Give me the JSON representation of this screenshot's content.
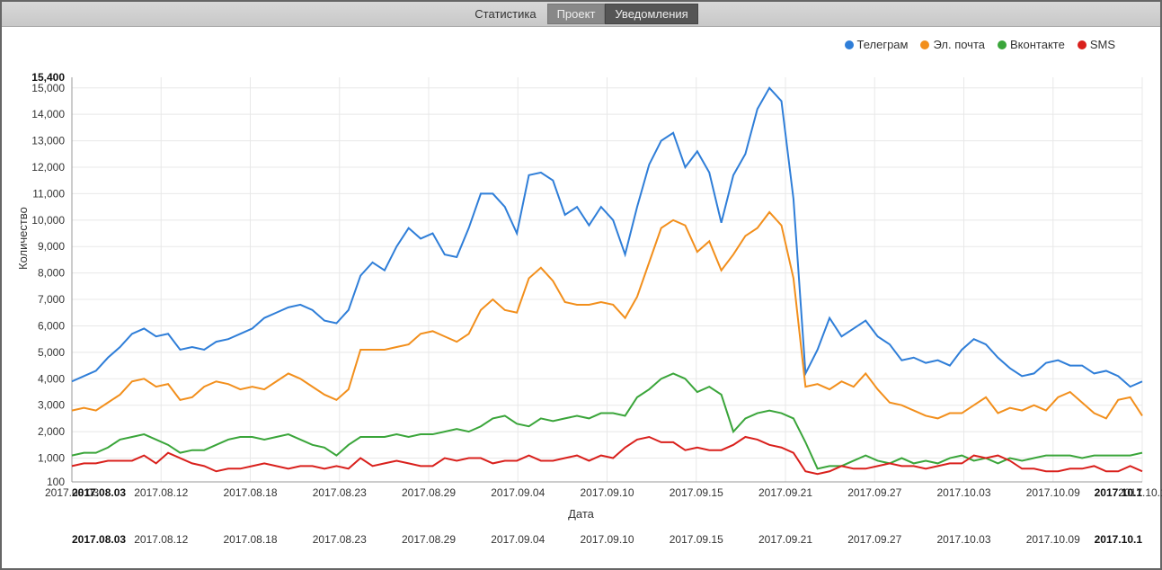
{
  "topbar": {
    "label": "Статистика",
    "tab_project": "Проект",
    "tab_notifications": "Уведомления"
  },
  "chart": {
    "type": "line",
    "y_axis_label": "Количество",
    "x_axis_label": "Дата",
    "background_color": "#ffffff",
    "grid_color": "#e8e8e8",
    "axis_color": "#999999",
    "x_ticks": [
      "2017.08.03",
      "2017.08.12",
      "2017.08.18",
      "2017.08.23",
      "2017.08.29",
      "2017.09.04",
      "2017.09.10",
      "2017.09.15",
      "2017.09.21",
      "2017.09.27",
      "2017.10.03",
      "2017.10.09",
      "2017.10.1"
    ],
    "x_bounds": [
      "2017.08.03",
      "2017.10.1"
    ],
    "y_ticks": [
      100,
      1000,
      2000,
      3000,
      4000,
      5000,
      6000,
      7000,
      8000,
      9000,
      10000,
      11000,
      12000,
      13000,
      14000,
      15000
    ],
    "y_min": 100,
    "y_max": 15400,
    "y_max_label": "15,400",
    "n_points": 72,
    "legend": [
      {
        "label": "Телеграм",
        "color": "#2f7ed8"
      },
      {
        "label": "Эл. почта",
        "color": "#f28f1c"
      },
      {
        "label": "Вконтакте",
        "color": "#3aa53a"
      },
      {
        "label": "SMS",
        "color": "#d9201c"
      }
    ],
    "series": {
      "telegram": [
        3900,
        4100,
        4300,
        4800,
        5200,
        5700,
        5900,
        5600,
        5700,
        5100,
        5200,
        5100,
        5400,
        5500,
        5700,
        5900,
        6300,
        6500,
        6700,
        6800,
        6600,
        6200,
        6100,
        6600,
        7900,
        8400,
        8100,
        9000,
        9700,
        9300,
        9500,
        8700,
        8600,
        9700,
        11000,
        11000,
        10500,
        9500,
        11700,
        11800,
        11500,
        10200,
        10500,
        9800,
        10500,
        10000,
        8700,
        10500,
        12100,
        13000,
        13300,
        12000,
        12600,
        11800,
        9900,
        11700,
        12500,
        14200,
        15000,
        14500,
        10800,
        4200,
        5100,
        6300,
        5600,
        5900,
        6200,
        5600,
        5300,
        4700,
        4800,
        4600
      ],
      "email": [
        2800,
        2900,
        2800,
        3100,
        3400,
        3900,
        4000,
        3700,
        3800,
        3200,
        3300,
        3700,
        3900,
        3800,
        3600,
        3700,
        3600,
        3900,
        4200,
        4000,
        3700,
        3400,
        3200,
        3600,
        5100,
        5100,
        5100,
        5200,
        5300,
        5700,
        5800,
        5600,
        5400,
        5700,
        6600,
        7000,
        6600,
        6500,
        7800,
        8200,
        7700,
        6900,
        6800,
        6800,
        6900,
        6800,
        6300,
        7100,
        8400,
        9700,
        10000,
        9800,
        8800,
        9200,
        8100,
        8700,
        9400,
        9700,
        10300,
        9800,
        7800,
        3700,
        3800,
        3600,
        3900,
        3700,
        4200,
        3600,
        3100,
        3000,
        2800,
        2600
      ],
      "vk": [
        1100,
        1200,
        1200,
        1400,
        1700,
        1800,
        1900,
        1700,
        1500,
        1200,
        1300,
        1300,
        1500,
        1700,
        1800,
        1800,
        1700,
        1800,
        1900,
        1700,
        1500,
        1400,
        1100,
        1500,
        1800,
        1800,
        1800,
        1900,
        1800,
        1900,
        1900,
        2000,
        2100,
        2000,
        2200,
        2500,
        2600,
        2300,
        2200,
        2500,
        2400,
        2500,
        2600,
        2500,
        2700,
        2700,
        2600,
        3300,
        3600,
        4000,
        4200,
        4000,
        3500,
        3700,
        3400,
        2000,
        2500,
        2700,
        2800,
        2700,
        2500,
        1600,
        600,
        700,
        700,
        900,
        1100,
        900,
        800,
        1000,
        800,
        900
      ],
      "sms": [
        700,
        800,
        800,
        900,
        900,
        900,
        1100,
        800,
        1200,
        1000,
        800,
        700,
        500,
        600,
        600,
        700,
        800,
        700,
        600,
        700,
        700,
        600,
        700,
        600,
        1000,
        700,
        800,
        900,
        800,
        700,
        700,
        1000,
        900,
        1000,
        1000,
        800,
        900,
        900,
        1100,
        900,
        900,
        1000,
        1100,
        900,
        1100,
        1000,
        1400,
        1700,
        1800,
        1600,
        1600,
        1300,
        1400,
        1300,
        1300,
        1500,
        1800,
        1700,
        1500,
        1400,
        1200,
        500,
        400,
        500,
        700,
        600,
        600,
        700,
        800,
        700,
        700,
        600
      ]
    },
    "extended_series": {
      "telegram": [
        4700,
        4500,
        5100,
        5500,
        5300,
        4800,
        4400,
        4100,
        4200,
        4600,
        4700,
        4500,
        4500,
        4200,
        4300,
        4100,
        3700,
        3900
      ],
      "email": [
        2500,
        2700,
        2700,
        3000,
        3300,
        2700,
        2900,
        2800,
        3000,
        2800,
        3300,
        3500,
        3100,
        2700,
        2500,
        3200,
        3300,
        2600
      ],
      "vk": [
        800,
        1000,
        1100,
        900,
        1000,
        800,
        1000,
        900,
        1000,
        1100,
        1100,
        1100,
        1000,
        1100,
        1100,
        1100,
        1100,
        1200
      ],
      "sms": [
        700,
        800,
        800,
        1100,
        1000,
        1100,
        900,
        600,
        600,
        500,
        500,
        600,
        600,
        700,
        500,
        500,
        700,
        500
      ]
    }
  }
}
